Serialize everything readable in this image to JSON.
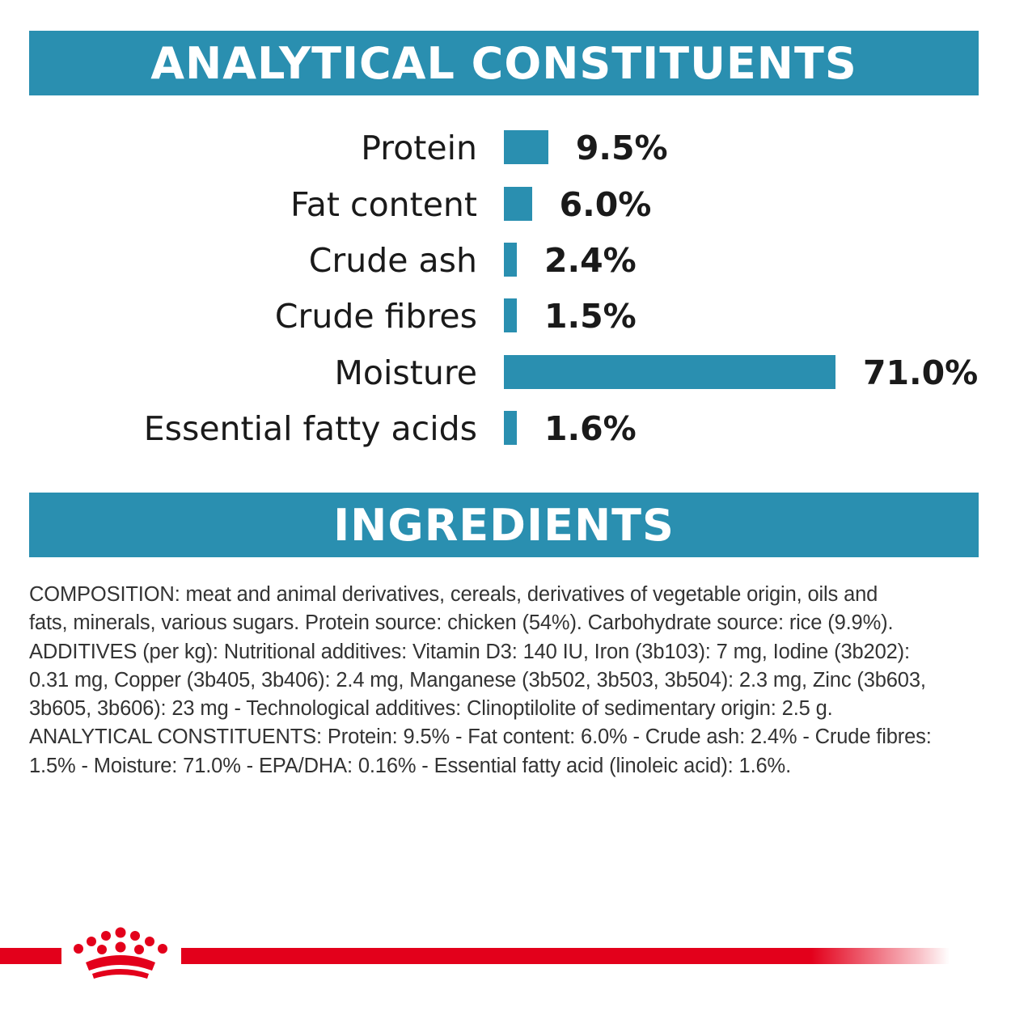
{
  "analytical_section": {
    "title": "ANALYTICAL CONSTITUENTS",
    "accent_color": "#2a8fb0",
    "rows": [
      {
        "label": "Protein",
        "value_text": "9.5%",
        "value": 9.5
      },
      {
        "label": "Fat content",
        "value_text": "6.0%",
        "value": 6.0
      },
      {
        "label": "Crude ash",
        "value_text": "2.4%",
        "value": 2.4
      },
      {
        "label": "Crude fibres",
        "value_text": "1.5%",
        "value": 1.5
      },
      {
        "label": "Moisture",
        "value_text": "71.0%",
        "value": 71.0
      },
      {
        "label": "Essential fatty acids",
        "value_text": "1.6%",
        "value": 1.6
      }
    ]
  },
  "ingredients_section": {
    "title": "INGREDIENTS",
    "lines": [
      "COMPOSITION: meat and animal derivatives, cereals, derivatives of vegetable origin, oils and",
      "fats, minerals, various sugars. Protein source: chicken (54%). Carbohydrate source: rice (9.9%).",
      "ADDITIVES (per kg): Nutritional additives: Vitamin D3: 140 IU, Iron (3b103): 7 mg, Iodine (3b202):",
      "0.31 mg, Copper (3b405, 3b406): 2.4 mg, Manganese (3b502, 3b503, 3b504): 2.3 mg, Zinc (3b603,",
      "3b605, 3b606): 23 mg - Technological additives: Clinoptilolite of sedimentary origin: 2.5 g.",
      "ANALYTICAL CONSTITUENTS: Protein: 9.5% - Fat content: 6.0% - Crude ash: 2.4% - Crude fibres:",
      "1.5% - Moisture: 71.0% - EPA/DHA: 0.16% - Essential fatty acid (linoleic acid): 1.6%."
    ]
  },
  "footer": {
    "brand_logo_icon": "crown-logo-icon",
    "brand_color": "#e3001b"
  }
}
